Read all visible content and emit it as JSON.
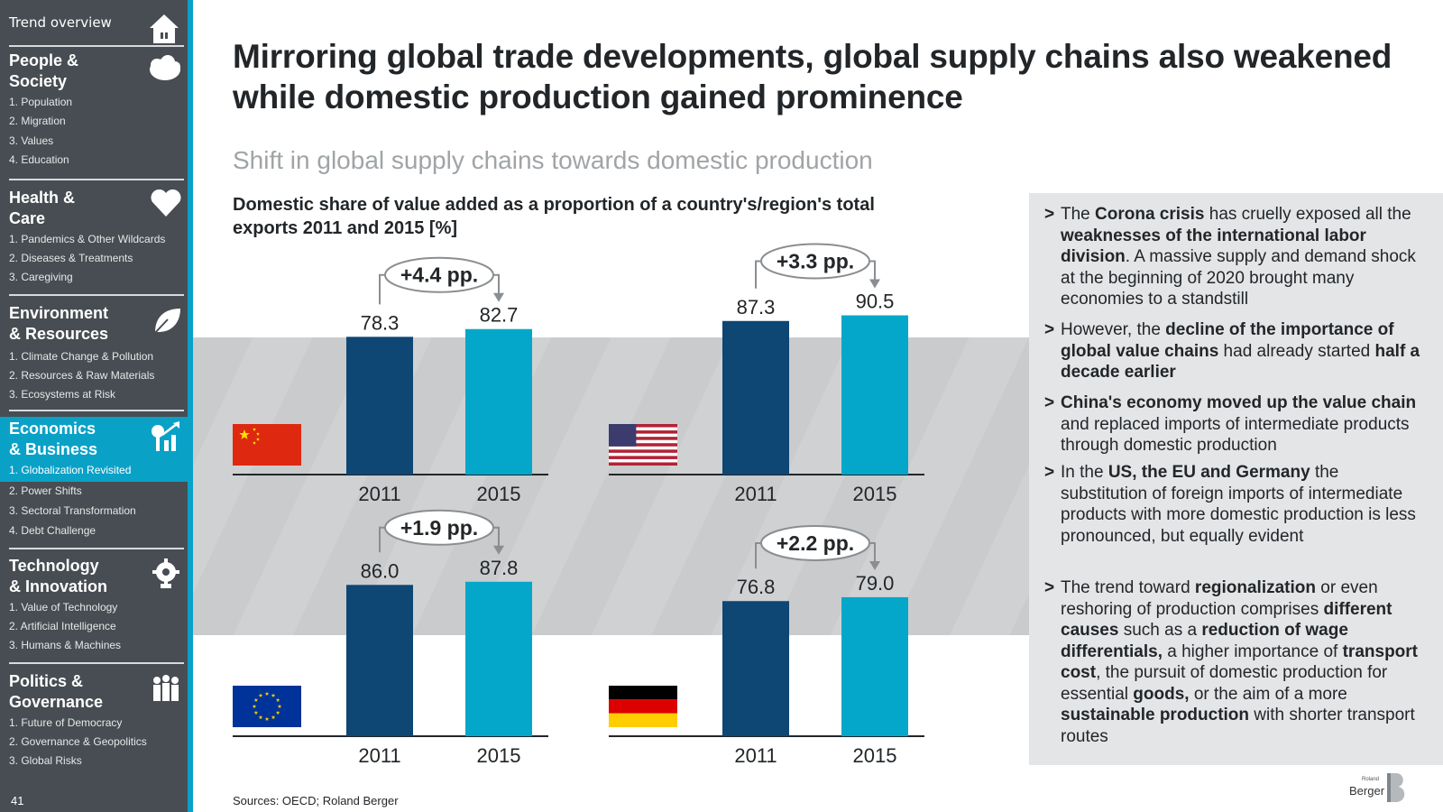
{
  "sidebar": {
    "top_label": "Trend overview",
    "page_number": "41",
    "sections": [
      {
        "title_line1": "People &",
        "title_line2": "Society",
        "icon": "people-cloud-icon",
        "items": [
          "1. Population",
          "2. Migration",
          "3. Values",
          "4. Education"
        ]
      },
      {
        "title_line1": "Health &",
        "title_line2": "Care",
        "icon": "heart-icon",
        "items": [
          "1. Pandemics & Other Wildcards",
          "2. Diseases & Treatments",
          "3. Caregiving"
        ]
      },
      {
        "title_line1": "Environment",
        "title_line2": "& Resources",
        "icon": "leaf-icon",
        "items": [
          "1. Climate Change & Pollution",
          "2. Resources & Raw Materials",
          "3. Ecosystems at Risk"
        ]
      },
      {
        "title_line1": "Economics",
        "title_line2": "& Business",
        "icon": "growth-chart-icon",
        "items": [
          "1. Globalization Revisited",
          "2. Power Shifts",
          "3. Sectoral Transformation",
          "4. Debt Challenge"
        ]
      },
      {
        "title_line1": "Technology",
        "title_line2": "& Innovation",
        "icon": "gear-bulb-icon",
        "items": [
          "1. Value of Technology",
          "2. Artificial Intelligence",
          "3. Humans & Machines"
        ]
      },
      {
        "title_line1": "Politics &",
        "title_line2": "Governance",
        "icon": "people-group-icon",
        "items": [
          "1. Future of Democracy",
          "2. Governance & Geopolitics",
          "3. Global Risks"
        ]
      }
    ]
  },
  "page": {
    "title": "Mirroring global trade developments, global supply chains also weakened while domestic production gained prominence",
    "subtitle": "Shift in global supply chains towards domestic production",
    "chart_heading": "Domestic share of value added as a proportion of a country's/region's total exports 2011 and 2015 [%]",
    "sources": "Sources: OECD; Roland Berger",
    "brand_small": "Roland",
    "brand_large": "Berger"
  },
  "colors": {
    "sidebar_bg": "#474d52",
    "accent": "#0aa1c7",
    "bar_2011": "#0e4674",
    "bar_2015": "#04a7c9",
    "panel_bg": "#e4e5e7"
  },
  "chart_data": {
    "type": "bar",
    "categories": [
      "2011",
      "2015"
    ],
    "panels": [
      {
        "region": "China",
        "flag": "china-flag-icon",
        "values": [
          78.3,
          82.7
        ],
        "change": "+4.4 pp."
      },
      {
        "region": "USA",
        "flag": "usa-flag-icon",
        "values": [
          87.3,
          90.5
        ],
        "change": "+3.3 pp."
      },
      {
        "region": "EU",
        "flag": "eu-flag-icon",
        "values": [
          86.0,
          87.8
        ],
        "change": "+1.9 pp."
      },
      {
        "region": "Germany",
        "flag": "germany-flag-icon",
        "values": [
          76.8,
          79.0
        ],
        "change": "+2.2 pp."
      }
    ],
    "grid": false
  },
  "bullets": [
    {
      "parts": [
        [
          "The ",
          false
        ],
        [
          "Corona crisis",
          true
        ],
        [
          " has cruelly exposed all the ",
          false
        ],
        [
          "weaknesses of the international labor division",
          true
        ],
        [
          ". A massive supply and demand shock at the beginning of 2020 brought many economies to a standstill",
          false
        ]
      ]
    },
    {
      "parts": [
        [
          "However, the ",
          false
        ],
        [
          "decline of the importance of global value chains",
          true
        ],
        [
          " had already started ",
          false
        ],
        [
          "half a decade earlier",
          true
        ]
      ]
    },
    {
      "parts": [
        [
          "China's economy moved up the value chain",
          true
        ],
        [
          " and replaced imports of intermediate products through domestic production",
          false
        ]
      ]
    },
    {
      "parts": [
        [
          "In the ",
          false
        ],
        [
          "US, the EU and Germany",
          true
        ],
        [
          " the substitution of foreign imports of intermediate products with more domestic production is less pronounced, but equally evident",
          false
        ]
      ]
    },
    {
      "parts": [
        [
          "The trend toward ",
          false
        ],
        [
          "regionalization",
          true
        ],
        [
          " or even reshoring of production comprises ",
          false
        ],
        [
          "different causes",
          true
        ],
        [
          " such as a ",
          false
        ],
        [
          "reduction of wage differentials,",
          true
        ],
        [
          " a higher importance of ",
          false
        ],
        [
          "transport cost",
          true
        ],
        [
          ", the pursuit of domestic production for essential ",
          false
        ],
        [
          "goods,",
          true
        ],
        [
          " or the aim of a more ",
          false
        ],
        [
          "sustainable production",
          true
        ],
        [
          " with shorter transport routes",
          false
        ]
      ]
    }
  ]
}
